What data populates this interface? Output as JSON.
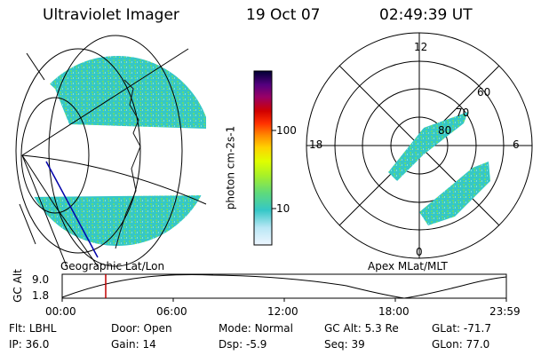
{
  "header": {
    "title": "Ultraviolet Imager",
    "date": "19 Oct 07",
    "time": "02:49:39 UT"
  },
  "colorbar": {
    "label": "photon cm-2s-1",
    "tick_labels": [
      "100",
      "10"
    ],
    "colors": [
      "#eef6ff",
      "#b9e7f5",
      "#35c7c7",
      "#5fda7a",
      "#a8f028",
      "#dfff00",
      "#ffd200",
      "#ff8a00",
      "#ff3000",
      "#d00000",
      "#990066",
      "#550080",
      "#000033"
    ]
  },
  "geo_panel": {
    "caption": "Geographic Lat/Lon"
  },
  "polar_panel": {
    "caption": "Apex MLat/MLT",
    "mlt_labels": [
      "12",
      "6",
      "0",
      "18"
    ],
    "lat_labels": [
      "60",
      "70",
      "80"
    ]
  },
  "altitude_plot": {
    "ylabel": "GC Alt",
    "ymax_label": "9.0",
    "ymin_label": "1.8",
    "time_ticks": [
      "00:00",
      "06:00",
      "12:00",
      "18:00",
      "23:59"
    ],
    "current_time_marker": "02:49:39"
  },
  "info": {
    "rows": [
      [
        {
          "label": "Flt:",
          "value": "LBHL"
        },
        {
          "label": "Door:",
          "value": "Open"
        },
        {
          "label": "Mode:",
          "value": "Normal"
        },
        {
          "label": "GC Alt:",
          "value": "5.3 Re"
        },
        {
          "label": "GLat:",
          "value": "-71.7"
        }
      ],
      [
        {
          "label": "IP:",
          "value": "36.0"
        },
        {
          "label": "Gain:",
          "value": "14"
        },
        {
          "label": "Dsp:",
          "value": "-5.9"
        },
        {
          "label": "Seq:",
          "value": "39"
        },
        {
          "label": "GLon:",
          "value": "77.0"
        }
      ]
    ]
  },
  "colors": {
    "aurora": "#35c7c7",
    "aurora_alt": "#5fda7a",
    "marker": "#c00000",
    "track": "#0000aa"
  }
}
